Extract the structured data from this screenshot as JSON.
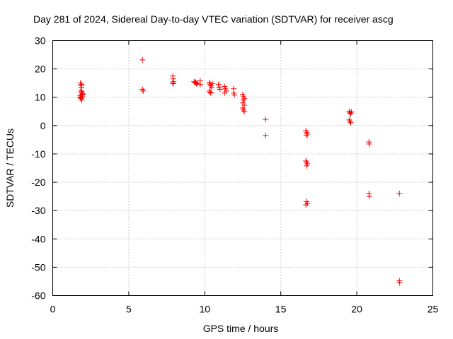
{
  "chart_data": {
    "type": "scatter",
    "title": "Day 281 of 2024, Sidereal Day-to-day VTEC variation (SDTVAR) for receiver ascg",
    "xlabel": "GPS time / hours",
    "ylabel": "SDTVAR / TECUs",
    "xlim": [
      0,
      25
    ],
    "ylim": [
      -60,
      30
    ],
    "xticks": [
      0,
      5,
      10,
      15,
      20,
      25
    ],
    "yticks": [
      -60,
      -50,
      -40,
      -30,
      -20,
      -10,
      0,
      10,
      20,
      30
    ],
    "xtick_labels": [
      "0",
      "5",
      "10",
      "15",
      "20",
      "25"
    ],
    "ytick_labels": [
      "-60",
      "-50",
      "-40",
      "-30",
      "-20",
      "-10",
      "0",
      "10",
      "20",
      "30"
    ],
    "grid": true,
    "marker": "plus",
    "color": "#ff0000",
    "series": [
      {
        "name": "SDTVAR",
        "points": [
          [
            1.82,
            15.0
          ],
          [
            1.85,
            14.2
          ],
          [
            1.88,
            13.5
          ],
          [
            1.9,
            12.0
          ],
          [
            1.92,
            11.5
          ],
          [
            1.95,
            11.0
          ],
          [
            1.8,
            10.5
          ],
          [
            1.83,
            10.0
          ],
          [
            1.87,
            9.5
          ],
          [
            1.9,
            9.0
          ],
          [
            1.93,
            10.8
          ],
          [
            1.97,
            11.2
          ],
          [
            1.85,
            12.5
          ],
          [
            1.9,
            14.5
          ],
          [
            1.82,
            9.8
          ],
          [
            1.95,
            10.2
          ],
          [
            5.9,
            23.2
          ],
          [
            5.9,
            12.8
          ],
          [
            5.95,
            12.2
          ],
          [
            7.9,
            17.5
          ],
          [
            7.92,
            16.5
          ],
          [
            7.95,
            15.5
          ],
          [
            7.9,
            15.0
          ],
          [
            7.93,
            14.8
          ],
          [
            9.3,
            15.5
          ],
          [
            9.4,
            15.2
          ],
          [
            9.5,
            15.0
          ],
          [
            9.45,
            14.8
          ],
          [
            9.35,
            15.3
          ],
          [
            9.7,
            15.8
          ],
          [
            9.7,
            14.5
          ],
          [
            10.3,
            15.2
          ],
          [
            10.35,
            14.6
          ],
          [
            10.4,
            14.0
          ],
          [
            10.45,
            13.5
          ],
          [
            10.3,
            12.2
          ],
          [
            10.35,
            11.8
          ],
          [
            10.4,
            11.5
          ],
          [
            10.5,
            14.8
          ],
          [
            10.9,
            14.5
          ],
          [
            10.95,
            13.5
          ],
          [
            11.0,
            12.8
          ],
          [
            11.3,
            13.8
          ],
          [
            11.35,
            13.0
          ],
          [
            11.4,
            12.2
          ],
          [
            11.3,
            11.5
          ],
          [
            11.9,
            13.0
          ],
          [
            11.9,
            11.5
          ],
          [
            11.95,
            10.8
          ],
          [
            12.5,
            11.0
          ],
          [
            12.55,
            10.2
          ],
          [
            12.6,
            9.5
          ],
          [
            12.55,
            9.0
          ],
          [
            12.5,
            8.0
          ],
          [
            12.6,
            7.2
          ],
          [
            12.5,
            6.2
          ],
          [
            12.55,
            5.5
          ],
          [
            12.6,
            5.0
          ],
          [
            14.0,
            2.2
          ],
          [
            14.0,
            -3.5
          ],
          [
            16.65,
            -1.8
          ],
          [
            16.7,
            -2.5
          ],
          [
            16.75,
            -3.0
          ],
          [
            16.7,
            -3.5
          ],
          [
            16.65,
            -12.5
          ],
          [
            16.7,
            -13.0
          ],
          [
            16.75,
            -13.5
          ],
          [
            16.7,
            -14.2
          ],
          [
            16.7,
            -26.8
          ],
          [
            16.75,
            -27.5
          ],
          [
            16.65,
            -28.0
          ],
          [
            19.5,
            5.0
          ],
          [
            19.55,
            4.5
          ],
          [
            19.6,
            4.2
          ],
          [
            19.65,
            4.8
          ],
          [
            19.5,
            2.0
          ],
          [
            19.55,
            1.5
          ],
          [
            19.6,
            1.0
          ],
          [
            20.8,
            -5.8
          ],
          [
            20.82,
            -6.5
          ],
          [
            20.8,
            -24.0
          ],
          [
            20.82,
            -25.0
          ],
          [
            22.8,
            -24.0
          ],
          [
            22.8,
            -54.8
          ],
          [
            22.82,
            -55.5
          ]
        ]
      }
    ]
  }
}
